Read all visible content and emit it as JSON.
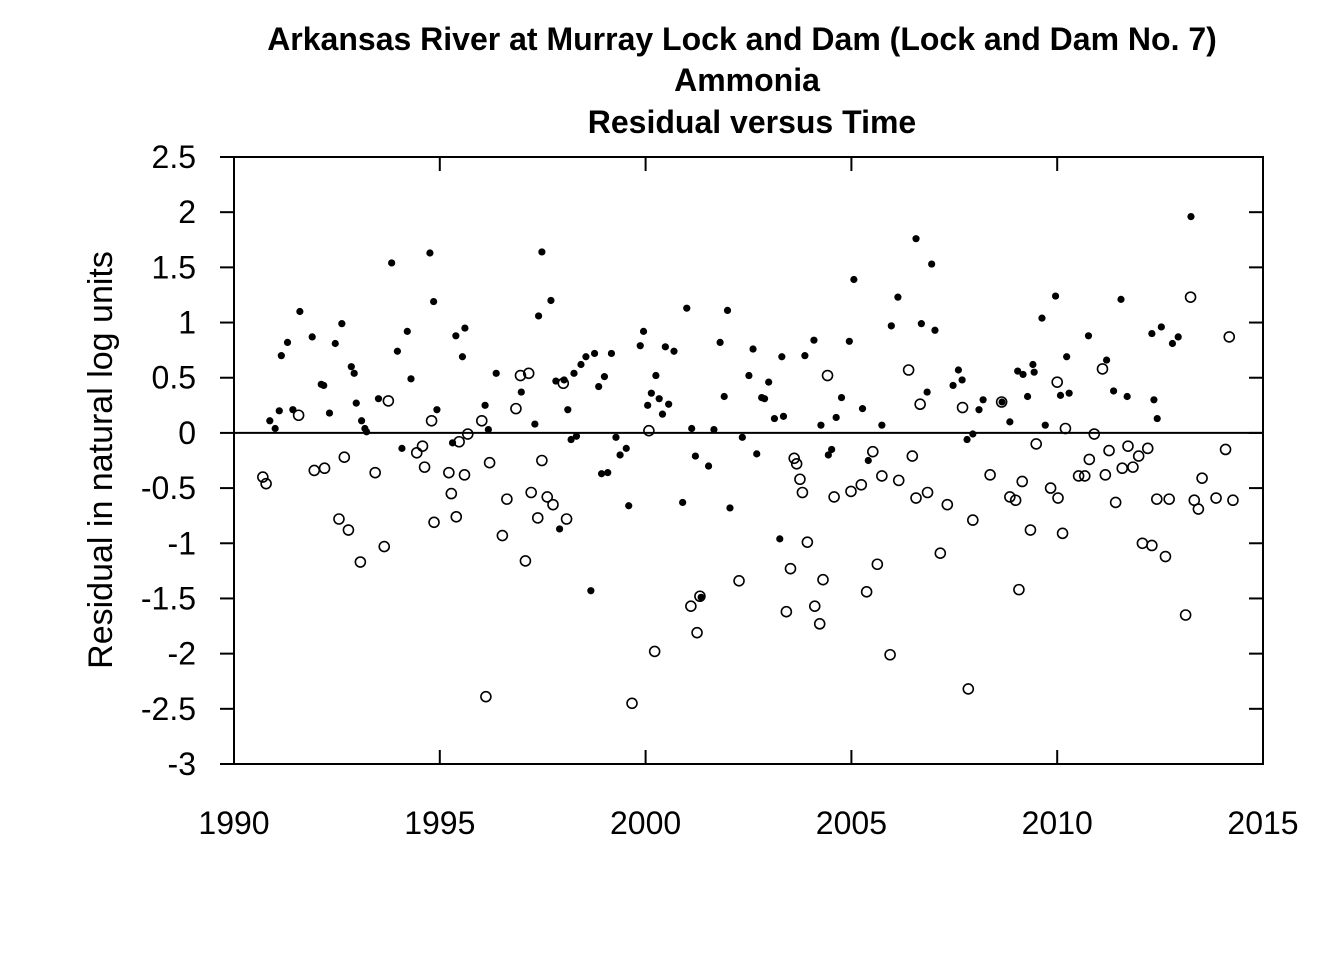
{
  "chart_data": {
    "type": "scatter",
    "title": [
      "Arkansas River at Murray Lock and Dam (Lock and Dam No. 7)",
      "Ammonia",
      "Residual versus Time"
    ],
    "xlabel": "",
    "ylabel": "Residual in natural log units",
    "xlim": [
      1990,
      2015
    ],
    "ylim": [
      -3,
      2.5
    ],
    "x_ticks": [
      1990,
      1995,
      2000,
      2005,
      2010,
      2015
    ],
    "x_tick_labels": [
      "1990",
      "1995",
      "2000",
      "2005",
      "2010",
      "2015"
    ],
    "y_ticks": [
      2.5,
      2,
      1.5,
      1,
      0.5,
      0,
      -0.5,
      -1,
      -1.5,
      -2,
      -2.5,
      -3
    ],
    "y_tick_labels": [
      "2.5",
      "2",
      "1.5",
      "1",
      "0.5",
      "0",
      "-0.5",
      "-1",
      "-1.5",
      "-2",
      "-2.5",
      "-3"
    ],
    "reference_line_y": 0,
    "grid": false,
    "series": [
      {
        "marker": "filled-circle",
        "points": [
          [
            1990.87,
            0.11
          ],
          [
            1991.0,
            0.04
          ],
          [
            1991.1,
            0.2
          ],
          [
            1991.15,
            0.7
          ],
          [
            1991.3,
            0.82
          ],
          [
            1991.43,
            0.21
          ],
          [
            1991.6,
            1.1
          ],
          [
            1991.9,
            0.87
          ],
          [
            1992.12,
            0.44
          ],
          [
            1992.18,
            0.43
          ],
          [
            1992.32,
            0.18
          ],
          [
            1992.46,
            0.81
          ],
          [
            1992.62,
            0.99
          ],
          [
            1992.85,
            0.6
          ],
          [
            1992.92,
            0.54
          ],
          [
            1992.97,
            0.27
          ],
          [
            1993.1,
            0.11
          ],
          [
            1993.18,
            0.04
          ],
          [
            1993.22,
            0.01
          ],
          [
            1993.51,
            0.31
          ],
          [
            1993.83,
            1.54
          ],
          [
            1993.97,
            0.74
          ],
          [
            1994.08,
            -0.14
          ],
          [
            1994.21,
            0.92
          ],
          [
            1994.3,
            0.49
          ],
          [
            1994.76,
            1.63
          ],
          [
            1994.85,
            1.19
          ],
          [
            1994.93,
            0.21
          ],
          [
            1995.31,
            -0.09
          ],
          [
            1995.39,
            0.88
          ],
          [
            1995.55,
            0.69
          ],
          [
            1995.61,
            0.95
          ],
          [
            1996.1,
            0.25
          ],
          [
            1996.18,
            0.03
          ],
          [
            1996.37,
            0.54
          ],
          [
            1996.98,
            0.37
          ],
          [
            1997.31,
            0.08
          ],
          [
            1997.4,
            1.06
          ],
          [
            1997.48,
            1.64
          ],
          [
            1997.7,
            1.2
          ],
          [
            1997.82,
            0.47
          ],
          [
            1997.91,
            -0.87
          ],
          [
            1998.02,
            0.48
          ],
          [
            1998.11,
            0.21
          ],
          [
            1998.19,
            -0.06
          ],
          [
            1998.26,
            0.54
          ],
          [
            1998.32,
            -0.03
          ],
          [
            1998.43,
            0.62
          ],
          [
            1998.55,
            0.69
          ],
          [
            1998.67,
            -1.43
          ],
          [
            1998.76,
            0.72
          ],
          [
            1998.86,
            0.42
          ],
          [
            1998.93,
            -0.37
          ],
          [
            1999.0,
            0.51
          ],
          [
            1999.08,
            -0.36
          ],
          [
            1999.17,
            0.72
          ],
          [
            1999.28,
            -0.04
          ],
          [
            1999.38,
            -0.2
          ],
          [
            1999.53,
            -0.14
          ],
          [
            1999.59,
            -0.66
          ],
          [
            1999.87,
            0.79
          ],
          [
            1999.95,
            0.92
          ],
          [
            2000.05,
            0.25
          ],
          [
            2000.14,
            0.36
          ],
          [
            2000.25,
            0.52
          ],
          [
            2000.33,
            0.31
          ],
          [
            2000.41,
            0.17
          ],
          [
            2000.48,
            0.78
          ],
          [
            2000.56,
            0.26
          ],
          [
            2000.69,
            0.74
          ],
          [
            2000.9,
            -0.63
          ],
          [
            2001.0,
            1.13
          ],
          [
            2001.12,
            0.04
          ],
          [
            2001.21,
            -0.21
          ],
          [
            2001.35,
            -1.49
          ],
          [
            2001.53,
            -0.3
          ],
          [
            2001.66,
            0.03
          ],
          [
            2001.81,
            0.82
          ],
          [
            2001.91,
            0.33
          ],
          [
            2001.99,
            1.11
          ],
          [
            2002.05,
            -0.68
          ],
          [
            2002.35,
            -0.04
          ],
          [
            2002.51,
            0.52
          ],
          [
            2002.61,
            0.76
          ],
          [
            2002.7,
            -0.19
          ],
          [
            2002.82,
            0.32
          ],
          [
            2002.89,
            0.31
          ],
          [
            2002.99,
            0.46
          ],
          [
            2003.13,
            0.13
          ],
          [
            2003.26,
            -0.96
          ],
          [
            2003.35,
            0.15
          ],
          [
            2003.31,
            0.69
          ],
          [
            2003.87,
            0.7
          ],
          [
            2004.09,
            0.84
          ],
          [
            2004.26,
            0.07
          ],
          [
            2004.44,
            -0.2
          ],
          [
            2004.52,
            -0.15
          ],
          [
            2004.63,
            0.14
          ],
          [
            2004.76,
            0.32
          ],
          [
            2004.95,
            0.83
          ],
          [
            2005.06,
            1.39
          ],
          [
            2005.27,
            0.22
          ],
          [
            2005.41,
            -0.25
          ],
          [
            2005.74,
            0.07
          ],
          [
            2005.97,
            0.97
          ],
          [
            2006.13,
            1.23
          ],
          [
            2006.57,
            1.76
          ],
          [
            2006.7,
            0.99
          ],
          [
            2006.84,
            0.37
          ],
          [
            2006.95,
            1.53
          ],
          [
            2007.03,
            0.93
          ],
          [
            2007.47,
            0.43
          ],
          [
            2007.6,
            0.57
          ],
          [
            2007.69,
            0.48
          ],
          [
            2007.81,
            -0.06
          ],
          [
            2007.95,
            -0.01
          ],
          [
            2008.1,
            0.21
          ],
          [
            2008.2,
            0.3
          ],
          [
            2008.66,
            0.28
          ],
          [
            2008.85,
            0.1
          ],
          [
            2009.04,
            0.56
          ],
          [
            2009.17,
            0.53
          ],
          [
            2009.28,
            0.33
          ],
          [
            2009.41,
            0.62
          ],
          [
            2009.44,
            0.55
          ],
          [
            2009.63,
            1.04
          ],
          [
            2009.71,
            0.07
          ],
          [
            2009.96,
            1.24
          ],
          [
            2010.08,
            0.34
          ],
          [
            2010.23,
            0.69
          ],
          [
            2010.29,
            0.36
          ],
          [
            2010.76,
            0.88
          ],
          [
            2011.2,
            0.66
          ],
          [
            2011.37,
            0.38
          ],
          [
            2011.55,
            1.21
          ],
          [
            2011.7,
            0.33
          ],
          [
            2012.3,
            0.9
          ],
          [
            2012.35,
            0.3
          ],
          [
            2012.43,
            0.13
          ],
          [
            2012.53,
            0.96
          ],
          [
            2012.8,
            0.81
          ],
          [
            2012.94,
            0.87
          ],
          [
            2013.25,
            1.96
          ]
        ]
      },
      {
        "marker": "open-circle",
        "points": [
          [
            1990.7,
            -0.4
          ],
          [
            1990.78,
            -0.46
          ],
          [
            1991.57,
            0.16
          ],
          [
            1991.95,
            -0.34
          ],
          [
            1992.2,
            -0.32
          ],
          [
            1992.55,
            -0.78
          ],
          [
            1992.68,
            -0.22
          ],
          [
            1992.78,
            -0.88
          ],
          [
            1993.07,
            -1.17
          ],
          [
            1993.43,
            -0.36
          ],
          [
            1993.65,
            -1.03
          ],
          [
            1993.75,
            0.29
          ],
          [
            1994.44,
            -0.18
          ],
          [
            1994.58,
            -0.12
          ],
          [
            1994.63,
            -0.31
          ],
          [
            1994.8,
            0.11
          ],
          [
            1994.86,
            -0.81
          ],
          [
            1995.22,
            -0.36
          ],
          [
            1995.28,
            -0.55
          ],
          [
            1995.4,
            -0.76
          ],
          [
            1995.47,
            -0.08
          ],
          [
            1995.6,
            -0.38
          ],
          [
            1995.68,
            -0.01
          ],
          [
            1996.02,
            0.11
          ],
          [
            1996.12,
            -2.39
          ],
          [
            1996.21,
            -0.27
          ],
          [
            1996.52,
            -0.93
          ],
          [
            1996.63,
            -0.6
          ],
          [
            1996.85,
            0.22
          ],
          [
            1996.96,
            0.52
          ],
          [
            1997.08,
            -1.16
          ],
          [
            1997.16,
            0.54
          ],
          [
            1997.22,
            -0.54
          ],
          [
            1997.38,
            -0.77
          ],
          [
            1997.48,
            -0.25
          ],
          [
            1997.61,
            -0.58
          ],
          [
            1997.75,
            -0.65
          ],
          [
            1998.0,
            0.45
          ],
          [
            1998.08,
            -0.78
          ],
          [
            1999.67,
            -2.45
          ],
          [
            2000.08,
            0.02
          ],
          [
            2000.22,
            -1.98
          ],
          [
            2001.1,
            -1.57
          ],
          [
            2001.25,
            -1.81
          ],
          [
            2001.32,
            -1.48
          ],
          [
            2002.27,
            -1.34
          ],
          [
            2003.42,
            -1.62
          ],
          [
            2003.52,
            -1.23
          ],
          [
            2003.61,
            -0.23
          ],
          [
            2003.67,
            -0.28
          ],
          [
            2003.75,
            -0.42
          ],
          [
            2003.81,
            -0.54
          ],
          [
            2003.93,
            -0.99
          ],
          [
            2004.11,
            -1.57
          ],
          [
            2004.23,
            -1.73
          ],
          [
            2004.31,
            -1.33
          ],
          [
            2004.42,
            0.52
          ],
          [
            2004.58,
            -0.58
          ],
          [
            2004.99,
            -0.53
          ],
          [
            2005.24,
            -0.47
          ],
          [
            2005.37,
            -1.44
          ],
          [
            2005.52,
            -0.17
          ],
          [
            2005.63,
            -1.19
          ],
          [
            2005.74,
            -0.39
          ],
          [
            2005.94,
            -2.01
          ],
          [
            2006.15,
            -0.43
          ],
          [
            2006.39,
            0.57
          ],
          [
            2006.48,
            -0.21
          ],
          [
            2006.57,
            -0.59
          ],
          [
            2006.67,
            0.26
          ],
          [
            2006.85,
            -0.54
          ],
          [
            2007.16,
            -1.09
          ],
          [
            2007.33,
            -0.65
          ],
          [
            2007.7,
            0.23
          ],
          [
            2007.84,
            -2.32
          ],
          [
            2007.95,
            -0.79
          ],
          [
            2008.37,
            -0.38
          ],
          [
            2008.65,
            0.28
          ],
          [
            2008.85,
            -0.58
          ],
          [
            2008.99,
            -0.61
          ],
          [
            2009.07,
            -1.42
          ],
          [
            2009.15,
            -0.44
          ],
          [
            2009.35,
            -0.88
          ],
          [
            2009.49,
            -0.1
          ],
          [
            2009.84,
            -0.5
          ],
          [
            2010.0,
            0.46
          ],
          [
            2010.02,
            -0.59
          ],
          [
            2010.13,
            -0.91
          ],
          [
            2010.2,
            0.04
          ],
          [
            2010.52,
            -0.39
          ],
          [
            2010.67,
            -0.39
          ],
          [
            2010.78,
            -0.24
          ],
          [
            2010.9,
            -0.01
          ],
          [
            2011.1,
            0.58
          ],
          [
            2011.17,
            -0.38
          ],
          [
            2011.26,
            -0.16
          ],
          [
            2011.42,
            -0.63
          ],
          [
            2011.58,
            -0.32
          ],
          [
            2011.72,
            -0.12
          ],
          [
            2011.84,
            -0.31
          ],
          [
            2011.98,
            -0.21
          ],
          [
            2012.07,
            -1.0
          ],
          [
            2012.2,
            -0.14
          ],
          [
            2012.3,
            -1.02
          ],
          [
            2012.42,
            -0.6
          ],
          [
            2012.63,
            -1.12
          ],
          [
            2012.72,
            -0.6
          ],
          [
            2013.12,
            -1.65
          ],
          [
            2013.24,
            1.23
          ],
          [
            2013.33,
            -0.61
          ],
          [
            2013.43,
            -0.69
          ],
          [
            2013.52,
            -0.41
          ],
          [
            2013.86,
            -0.59
          ],
          [
            2014.09,
            -0.15
          ],
          [
            2014.18,
            0.87
          ],
          [
            2014.27,
            -0.61
          ]
        ]
      }
    ]
  }
}
